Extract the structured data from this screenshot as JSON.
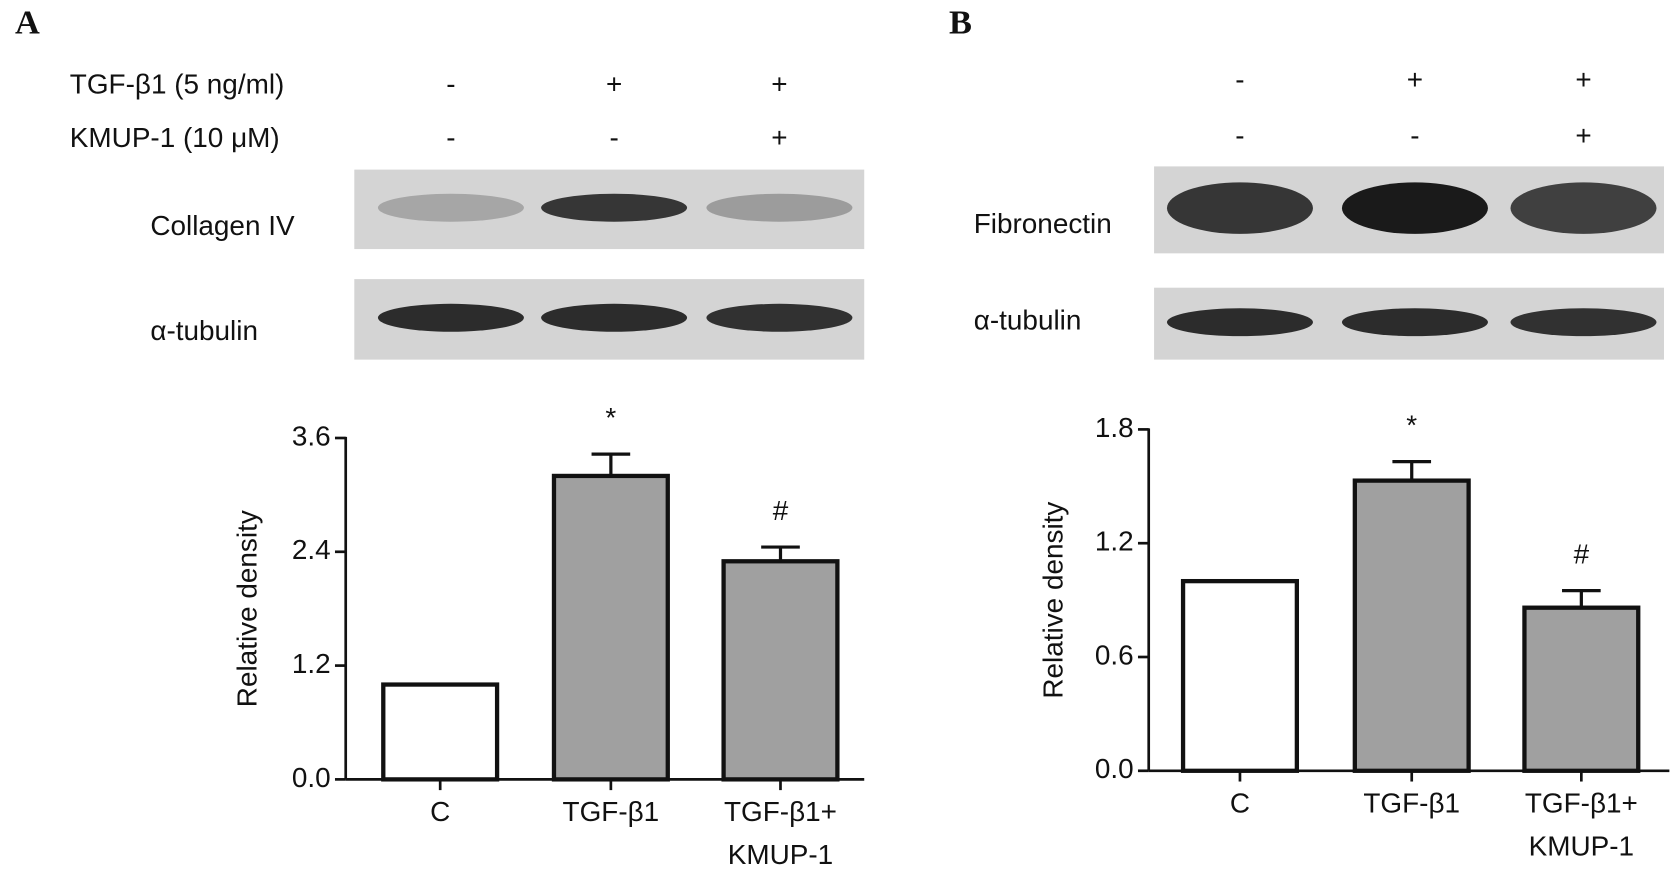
{
  "chart_data": [
    {
      "type": "bar",
      "panel": "A",
      "treatments": [
        {
          "label": "TGF-β1 (5 ng/ml)",
          "signs": [
            "-",
            "+",
            "+"
          ]
        },
        {
          "label": "KMUP-1 (10 μM)",
          "signs": [
            "-",
            "-",
            "+"
          ]
        }
      ],
      "blot_labels": [
        "Collagen IV",
        "α-tubulin"
      ],
      "ylabel": "Relative density",
      "categories": [
        [
          "C"
        ],
        [
          "TGF-β1"
        ],
        [
          "TGF-β1+",
          "KMUP-1"
        ]
      ],
      "values": [
        1.0,
        3.2,
        2.3
      ],
      "errors": [
        null,
        0.23,
        0.15
      ],
      "annotations": [
        null,
        "*",
        "#"
      ],
      "colors": [
        "#ffffff",
        "#a0a0a0",
        "#a0a0a0"
      ],
      "ylim": [
        0,
        3.6
      ],
      "yticks": [
        {
          "value": 0,
          "label": "0.0"
        },
        1.2,
        2.4,
        3.6
      ]
    },
    {
      "type": "bar",
      "panel": "B",
      "treatments": [
        {
          "signs": [
            "-",
            "+",
            "+"
          ]
        },
        {
          "signs": [
            "-",
            "-",
            "+"
          ]
        }
      ],
      "blot_labels": [
        "Fibronectin",
        "α-tubulin"
      ],
      "ylabel": "Relative density",
      "categories": [
        [
          "C"
        ],
        [
          "TGF-β1"
        ],
        [
          "TGF-β1+",
          "KMUP-1"
        ]
      ],
      "values": [
        1.0,
        1.53,
        0.86
      ],
      "errors": [
        null,
        0.1,
        0.09
      ],
      "annotations": [
        null,
        "*",
        "#"
      ],
      "colors": [
        "#ffffff",
        "#a0a0a0",
        "#a0a0a0"
      ],
      "ylim": [
        0,
        1.8
      ],
      "yticks": [
        {
          "value": 0,
          "label": "0.0"
        },
        0.6,
        1.2,
        1.8
      ]
    }
  ]
}
